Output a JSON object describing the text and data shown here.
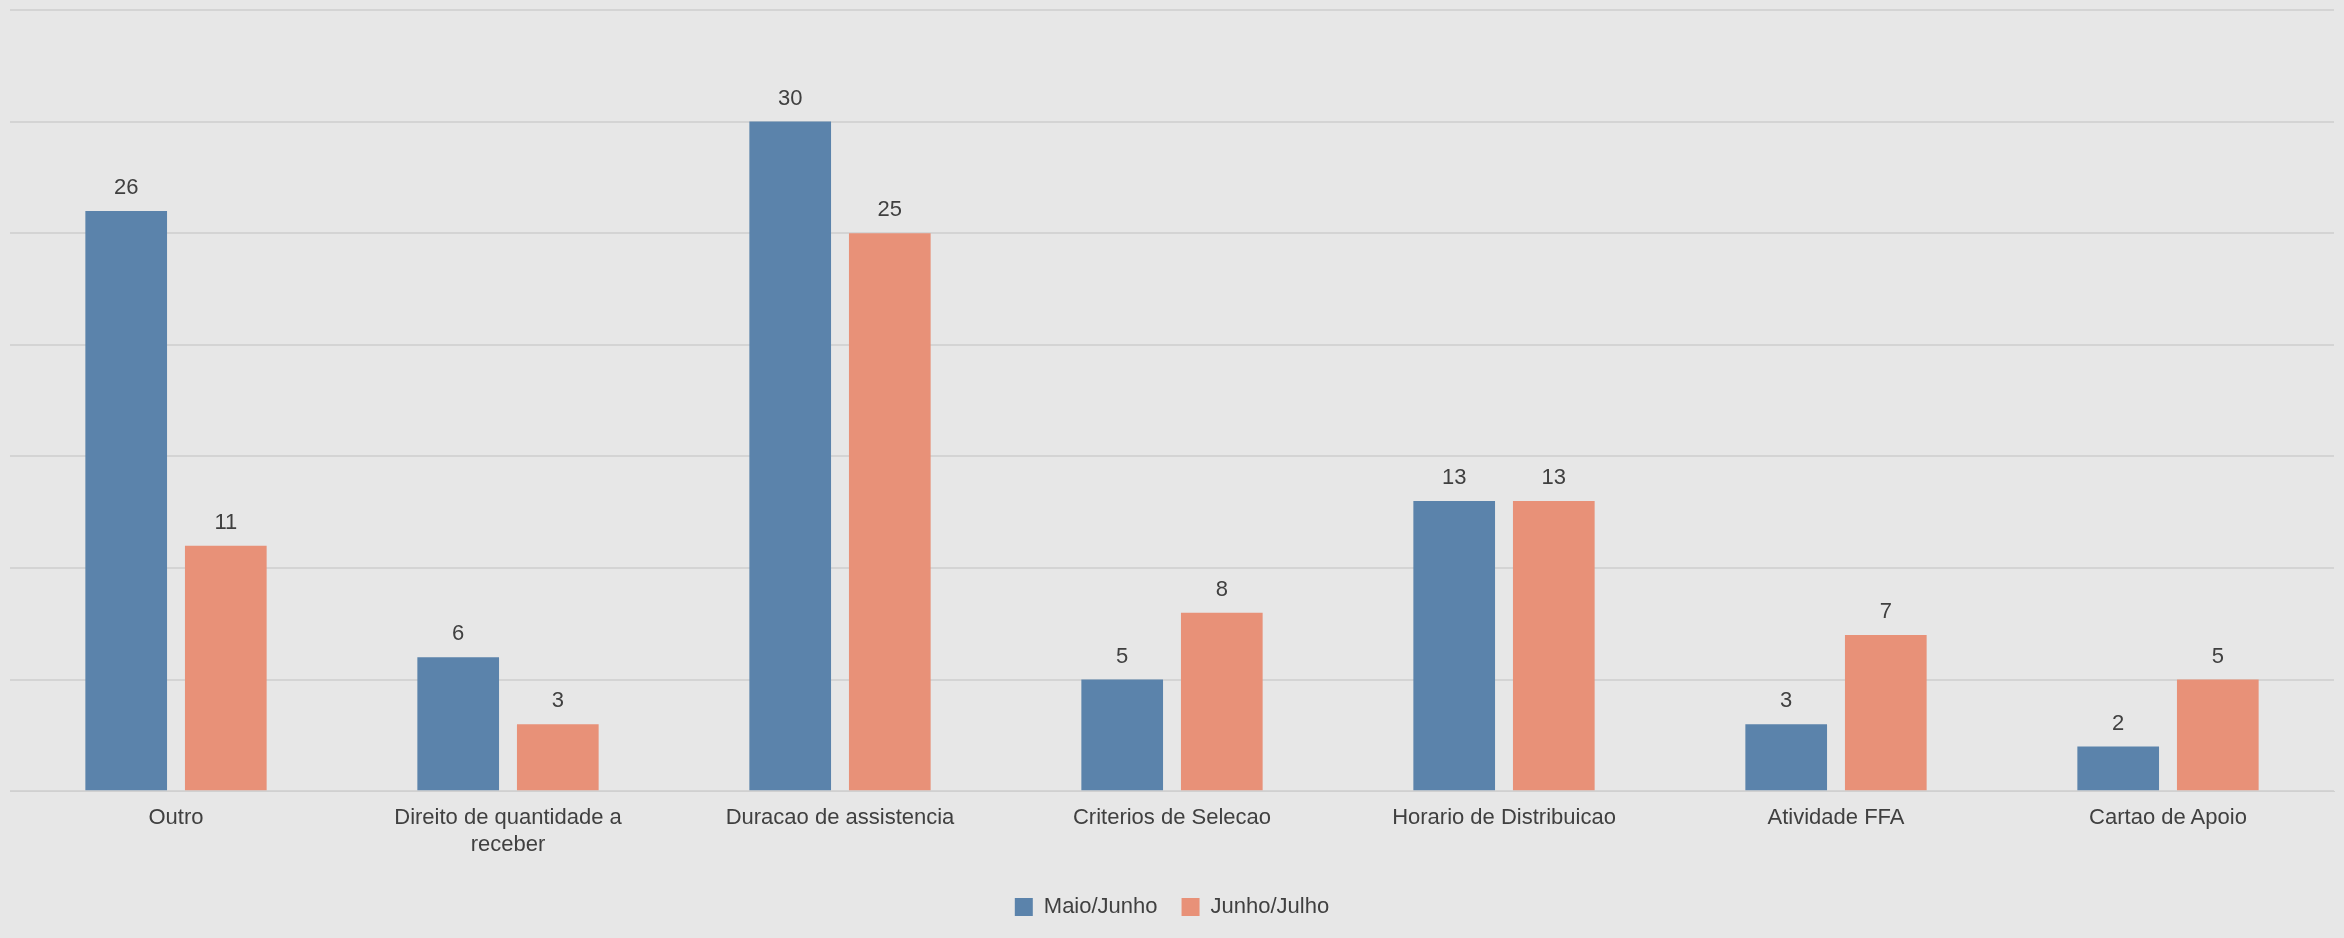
{
  "chart_data": {
    "type": "bar",
    "categories": [
      "Outro",
      "Direito de quantidade a receber",
      "Duracao de assistencia",
      "Criterios de Selecao",
      "Horario de Distribuicao",
      "Atividade FFA",
      "Cartao de Apoio"
    ],
    "series": [
      {
        "name": "Maio/Junho",
        "color": "#5b83ab",
        "values": [
          26,
          6,
          30,
          5,
          13,
          3,
          2
        ]
      },
      {
        "name": "Junho/Julho",
        "color": "#e89178",
        "values": [
          11,
          3,
          25,
          8,
          13,
          7,
          5
        ]
      }
    ],
    "ylim": [
      0,
      35
    ],
    "yticks": [
      {
        "value": 0,
        "label": null
      },
      {
        "value": 5,
        "label": null
      },
      {
        "value": 10,
        "label": null
      },
      {
        "value": 15,
        "label": null
      },
      {
        "value": 20,
        "label": null
      },
      {
        "value": 25,
        "label": null
      },
      {
        "value": 30,
        "label": null
      },
      {
        "value": 35,
        "label": null
      }
    ],
    "tick_labels": "x",
    "grid": "y",
    "legend": "bottom",
    "data_labels": true
  }
}
